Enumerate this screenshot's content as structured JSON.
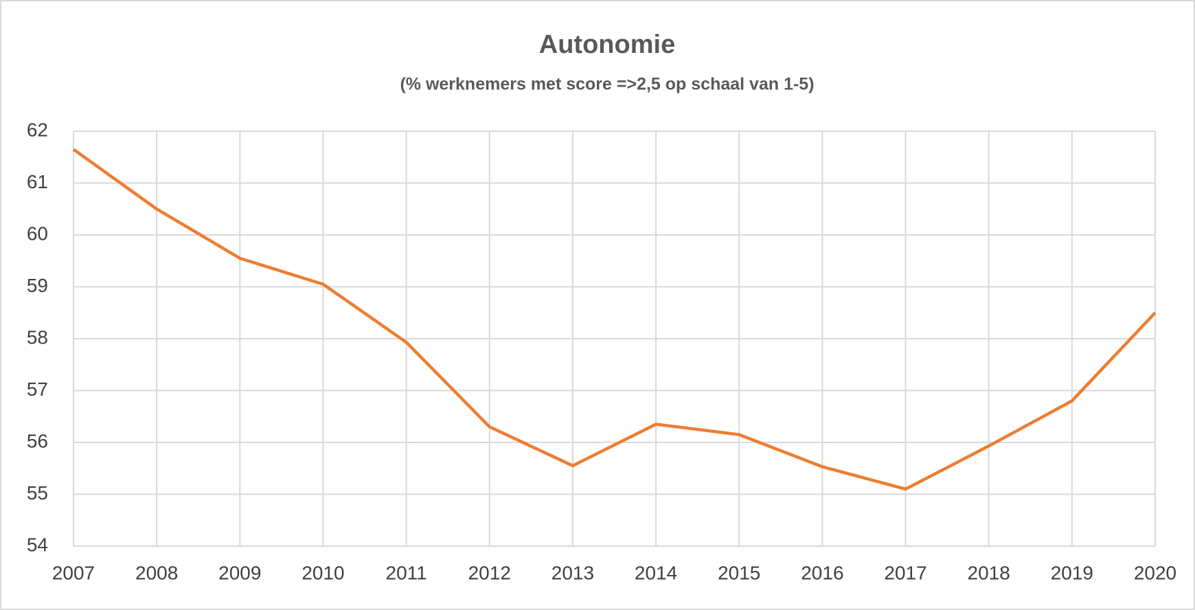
{
  "chart_data": {
    "type": "line",
    "title": "Autonomie",
    "subtitle": "(% werknemers met score =>2,5 op schaal van 1-5)",
    "x": [
      2007,
      2008,
      2009,
      2010,
      2011,
      2012,
      2013,
      2014,
      2015,
      2016,
      2017,
      2018,
      2019,
      2020
    ],
    "series": [
      {
        "name": "Autonomie",
        "color": "#ed7d31",
        "values": [
          61.65,
          60.5,
          59.55,
          59.05,
          57.93,
          56.3,
          55.55,
          56.35,
          56.15,
          55.53,
          55.1,
          55.93,
          56.8,
          58.5
        ]
      }
    ],
    "xlim": [
      2007,
      2020
    ],
    "xticks": [
      2007,
      2008,
      2009,
      2010,
      2011,
      2012,
      2013,
      2014,
      2015,
      2016,
      2017,
      2018,
      2019,
      2020
    ],
    "ylim": [
      54,
      62
    ],
    "yticks": [
      54,
      55,
      56,
      57,
      58,
      59,
      60,
      61,
      62
    ],
    "grid": true
  }
}
